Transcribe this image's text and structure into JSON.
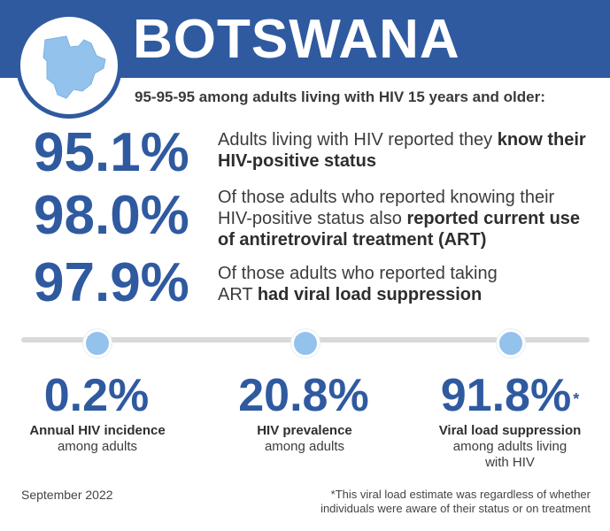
{
  "header": {
    "country": "BOTSWANA",
    "subtitle": "95-95-95 among adults living with HIV 15 years and older:",
    "brand_color": "#2f5aa0",
    "map_color": "#93c2ec",
    "map_icon": "botswana-map-icon"
  },
  "stats": [
    {
      "value": "95.1%",
      "text_before": "Adults living with HIV reported they ",
      "text_bold": "know their HIV-positive status"
    },
    {
      "value": "98.0%",
      "text_before": "Of those adults who reported knowing their HIV-positive status also ",
      "text_bold": "reported current use of antiretroviral treatment (ART)"
    },
    {
      "value": "97.9%",
      "text_before": "Of those adults who reported taking ART ",
      "text_bold": "had viral load suppression"
    }
  ],
  "kpis": [
    {
      "value": "0.2%",
      "asterisk": "",
      "title": "Annual HIV incidence",
      "subtitle": "among adults"
    },
    {
      "value": "20.8%",
      "asterisk": "",
      "title": "HIV prevalence",
      "subtitle": "among adults"
    },
    {
      "value": "91.8%",
      "asterisk": "*",
      "title": "Viral load suppression",
      "subtitle": "among adults living with HIV"
    }
  ],
  "footer": {
    "date": "September 2022",
    "footnote": "*This viral load estimate was regardless of whether individuals were aware of their status or on treatment"
  }
}
